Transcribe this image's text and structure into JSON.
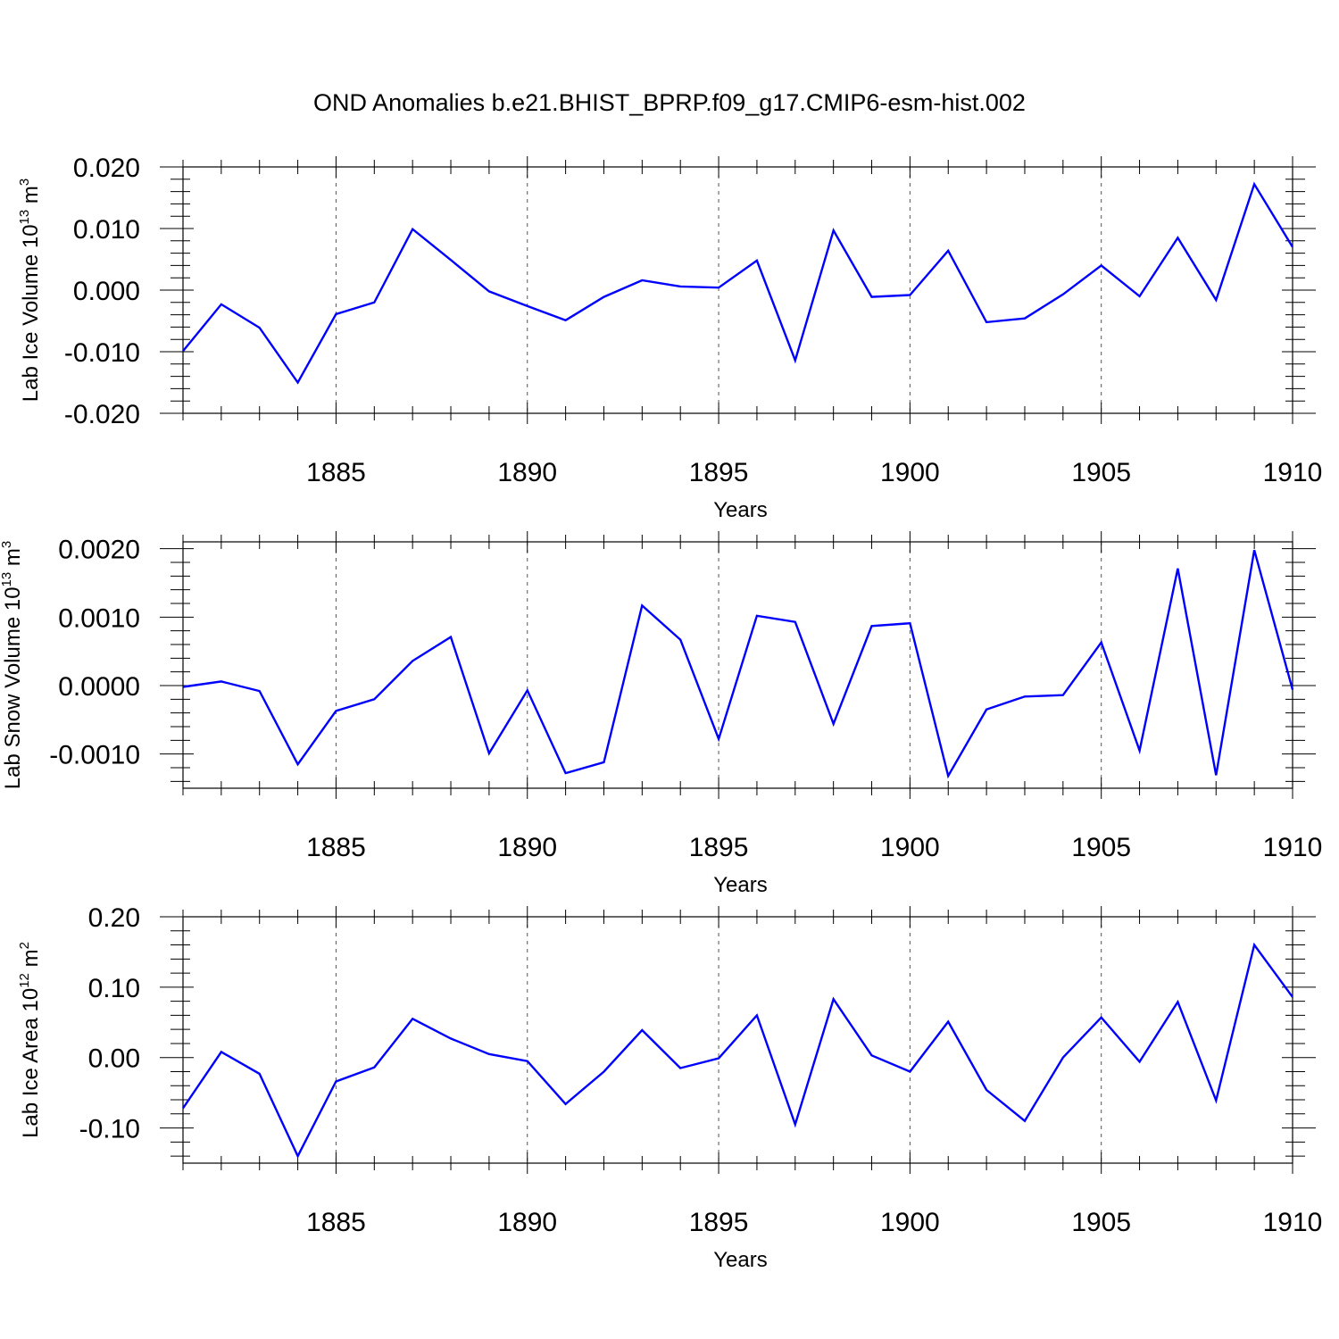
{
  "figure_title": "OND Anomalies b.e21.BHIST_BPRP.f09_g17.CMIP6-esm-hist.002",
  "series_color": "#0000ff",
  "chart_data": [
    {
      "type": "line",
      "id": "ice-volume",
      "ylabel": "Lab Ice Volume",
      "yunit_base": "10",
      "yunit_exp": "13",
      "yunit_rest": "m",
      "yunit_rest_exp": "3",
      "xlabel": "Years",
      "xlim": [
        1881,
        1910
      ],
      "ylim": [
        -0.02,
        0.02
      ],
      "xticks": [
        1885,
        1890,
        1895,
        1900,
        1905,
        1910
      ],
      "xtick_labels": [
        "1885",
        "1890",
        "1895",
        "1900",
        "1905",
        "1910"
      ],
      "yticks": [
        -0.02,
        -0.01,
        0.0,
        0.01,
        0.02
      ],
      "ytick_labels": [
        "-0.020",
        "-0.010",
        "0.000",
        "0.010",
        "0.020"
      ],
      "grid": "x dashed at labeled years",
      "x": [
        1881,
        1882,
        1883,
        1884,
        1885,
        1886,
        1887,
        1888,
        1889,
        1890,
        1891,
        1892,
        1893,
        1894,
        1895,
        1896,
        1897,
        1898,
        1899,
        1900,
        1901,
        1902,
        1903,
        1904,
        1905,
        1906,
        1907,
        1908,
        1909,
        1910
      ],
      "values": [
        -0.0099,
        -0.0023,
        -0.0061,
        -0.015,
        -0.0039,
        -0.002,
        0.0099,
        0.0049,
        -0.0002,
        -0.0026,
        -0.0049,
        -0.0011,
        0.0016,
        0.0006,
        0.0004,
        0.0048,
        -0.0114,
        0.0097,
        -0.0011,
        -0.0008,
        0.0064,
        -0.0052,
        -0.0046,
        -0.0007,
        0.004,
        -0.001,
        0.0085,
        -0.0016,
        0.0172,
        0.007
      ]
    },
    {
      "type": "line",
      "id": "snow-volume",
      "ylabel": "Lab Snow Volume",
      "yunit_base": "10",
      "yunit_exp": "13",
      "yunit_rest": "m",
      "yunit_rest_exp": "3",
      "xlabel": "Years",
      "xlim": [
        1881,
        1910
      ],
      "ylim": [
        -0.0015,
        0.0021
      ],
      "xticks": [
        1885,
        1890,
        1895,
        1900,
        1905,
        1910
      ],
      "xtick_labels": [
        "1885",
        "1890",
        "1895",
        "1900",
        "1905",
        "1910"
      ],
      "yticks": [
        -0.001,
        0.0,
        0.001,
        0.002
      ],
      "ytick_labels": [
        "-0.0010",
        "0.0000",
        "0.0010",
        "0.0020"
      ],
      "grid": "x dashed at labeled years",
      "x": [
        1881,
        1882,
        1883,
        1884,
        1885,
        1886,
        1887,
        1888,
        1889,
        1890,
        1891,
        1892,
        1893,
        1894,
        1895,
        1896,
        1897,
        1898,
        1899,
        1900,
        1901,
        1902,
        1903,
        1904,
        1905,
        1906,
        1907,
        1908,
        1909,
        1910
      ],
      "values": [
        -2e-05,
        6e-05,
        -8e-05,
        -0.00115,
        -0.00037,
        -0.0002,
        0.00036,
        0.00071,
        -0.00099,
        -7e-05,
        -0.00128,
        -0.00112,
        0.00117,
        0.00067,
        -0.00078,
        0.00102,
        0.00093,
        -0.00056,
        0.00087,
        0.00091,
        -0.00132,
        -0.00035,
        -0.00016,
        -0.00014,
        0.00063,
        -0.00095,
        0.00171,
        -0.00131,
        0.00198,
        -6e-05
      ]
    },
    {
      "type": "line",
      "id": "ice-area",
      "ylabel": "Lab Ice Area",
      "yunit_base": "10",
      "yunit_exp": "12",
      "yunit_rest": "m",
      "yunit_rest_exp": "2",
      "xlabel": "Years",
      "xlim": [
        1881,
        1910
      ],
      "ylim": [
        -0.15,
        0.2
      ],
      "xticks": [
        1885,
        1890,
        1895,
        1900,
        1905,
        1910
      ],
      "xtick_labels": [
        "1885",
        "1890",
        "1895",
        "1900",
        "1905",
        "1910"
      ],
      "yticks": [
        -0.1,
        0.0,
        0.1,
        0.2
      ],
      "ytick_labels": [
        "-0.10",
        "0.00",
        "0.10",
        "0.20"
      ],
      "grid": "x dashed at labeled years",
      "x": [
        1881,
        1882,
        1883,
        1884,
        1885,
        1886,
        1887,
        1888,
        1889,
        1890,
        1891,
        1892,
        1893,
        1894,
        1895,
        1896,
        1897,
        1898,
        1899,
        1900,
        1901,
        1902,
        1903,
        1904,
        1905,
        1906,
        1907,
        1908,
        1909,
        1910
      ],
      "values": [
        -0.072,
        0.008,
        -0.023,
        -0.14,
        -0.034,
        -0.014,
        0.055,
        0.027,
        0.005,
        -0.005,
        -0.066,
        -0.02,
        0.039,
        -0.015,
        -0.001,
        0.06,
        -0.095,
        0.083,
        0.003,
        -0.02,
        0.051,
        -0.046,
        -0.09,
        0.0,
        0.057,
        -0.006,
        0.079,
        -0.061,
        0.16,
        0.086
      ]
    }
  ]
}
